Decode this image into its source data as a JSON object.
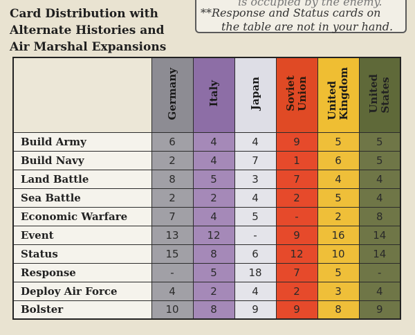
{
  "title_lines": [
    "Card Distribution with",
    "Alternate Histories and",
    "Air Marshal Expansions"
  ],
  "note": {
    "line0": "is occupied by the enemy.",
    "line1": "**Response and Status cards on",
    "line2": "the table are not in your hand."
  },
  "columns": [
    "Germany",
    "Italy",
    "Japan",
    "Soviet Union",
    "United Kingdom",
    "United States"
  ],
  "column_lines": [
    [
      "Germany"
    ],
    [
      "Italy"
    ],
    [
      "Japan"
    ],
    [
      "Soviet",
      "Union"
    ],
    [
      "United",
      "Kingdom"
    ],
    [
      "United",
      "States"
    ]
  ],
  "column_colors": [
    "#a1a0a6",
    "#a589b8",
    "#e4e4ea",
    "#e64a2b",
    "#efbf39",
    "#6f7647"
  ],
  "rows": [
    {
      "label": "Build Army",
      "values": [
        "6",
        "4",
        "4",
        "9",
        "5",
        "5"
      ]
    },
    {
      "label": "Build Navy",
      "values": [
        "2",
        "4",
        "7",
        "1",
        "6",
        "5"
      ]
    },
    {
      "label": "Land Battle",
      "values": [
        "8",
        "5",
        "3",
        "7",
        "4",
        "4"
      ]
    },
    {
      "label": "Sea Battle",
      "values": [
        "2",
        "2",
        "4",
        "2",
        "5",
        "4"
      ]
    },
    {
      "label": "Economic Warfare",
      "values": [
        "7",
        "4",
        "5",
        "-",
        "2",
        "8"
      ]
    },
    {
      "label": "Event",
      "values": [
        "13",
        "12",
        "-",
        "9",
        "16",
        "14"
      ]
    },
    {
      "label": "Status",
      "values": [
        "15",
        "8",
        "6",
        "12",
        "10",
        "14"
      ]
    },
    {
      "label": "Response",
      "values": [
        "-",
        "5",
        "18",
        "7",
        "5",
        "-"
      ]
    },
    {
      "label": "Deploy Air Force",
      "values": [
        "4",
        "2",
        "4",
        "2",
        "3",
        "4"
      ]
    },
    {
      "label": "Bolster",
      "values": [
        "10",
        "8",
        "9",
        "9",
        "8",
        "9"
      ]
    }
  ]
}
